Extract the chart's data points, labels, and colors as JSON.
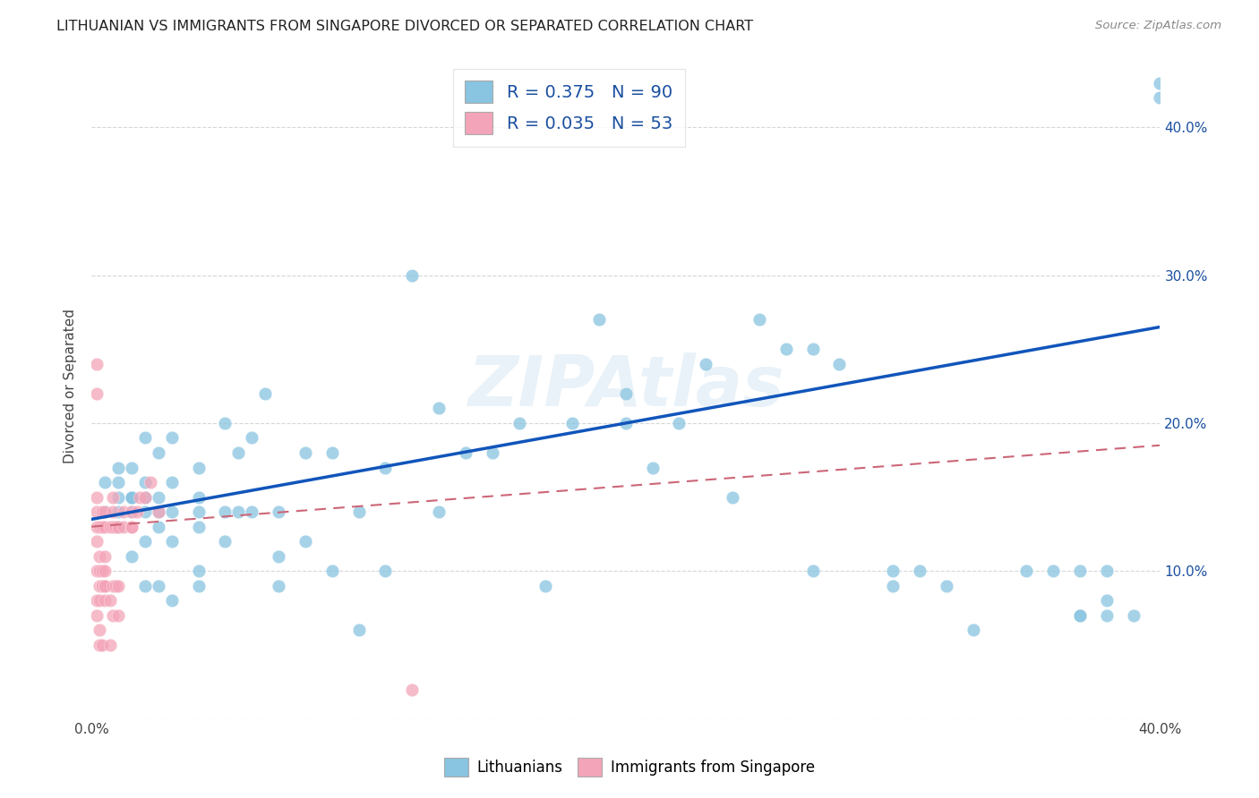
{
  "title": "LITHUANIAN VS IMMIGRANTS FROM SINGAPORE DIVORCED OR SEPARATED CORRELATION CHART",
  "source": "Source: ZipAtlas.com",
  "ylabel": "Divorced or Separated",
  "xlabel": "",
  "xlim": [
    0.0,
    0.4
  ],
  "ylim": [
    0.0,
    0.45
  ],
  "x_ticks": [
    0.0,
    0.1,
    0.2,
    0.3,
    0.4
  ],
  "x_tick_labels": [
    "0.0%",
    "",
    "",
    "",
    "40.0%"
  ],
  "y_ticks": [
    0.0,
    0.1,
    0.2,
    0.3,
    0.4
  ],
  "y_tick_labels_right": [
    "",
    "10.0%",
    "20.0%",
    "30.0%",
    "40.0%"
  ],
  "watermark": "ZIPAtlas",
  "blue_color": "#89c4e1",
  "pink_color": "#f4a4b8",
  "blue_line_color": "#1155bb",
  "pink_line_color": "#cc6677",
  "legend_blue_label_r": "R = ",
  "legend_blue_r_val": "0.375",
  "legend_blue_label_n": "  N = ",
  "legend_blue_n_val": "90",
  "legend_pink_label_r": "R = ",
  "legend_pink_r_val": "0.035",
  "legend_pink_label_n": "  N = ",
  "legend_pink_n_val": "53",
  "blue_trend_x": [
    0.0,
    0.4
  ],
  "blue_trend_y": [
    0.135,
    0.265
  ],
  "pink_trend_x": [
    0.0,
    0.4
  ],
  "pink_trend_y": [
    0.13,
    0.185
  ],
  "blue_scatter_x": [
    0.005,
    0.005,
    0.01,
    0.01,
    0.01,
    0.01,
    0.01,
    0.015,
    0.015,
    0.015,
    0.015,
    0.015,
    0.015,
    0.02,
    0.02,
    0.02,
    0.02,
    0.02,
    0.02,
    0.025,
    0.025,
    0.025,
    0.025,
    0.025,
    0.03,
    0.03,
    0.03,
    0.03,
    0.03,
    0.04,
    0.04,
    0.04,
    0.04,
    0.04,
    0.04,
    0.05,
    0.05,
    0.05,
    0.055,
    0.055,
    0.06,
    0.06,
    0.065,
    0.07,
    0.07,
    0.07,
    0.08,
    0.08,
    0.09,
    0.09,
    0.1,
    0.1,
    0.11,
    0.11,
    0.12,
    0.13,
    0.13,
    0.14,
    0.15,
    0.16,
    0.17,
    0.18,
    0.19,
    0.2,
    0.2,
    0.21,
    0.22,
    0.23,
    0.24,
    0.25,
    0.26,
    0.27,
    0.27,
    0.28,
    0.3,
    0.3,
    0.31,
    0.32,
    0.33,
    0.35,
    0.36,
    0.37,
    0.37,
    0.37,
    0.38,
    0.38,
    0.38,
    0.39,
    0.4,
    0.4
  ],
  "blue_scatter_y": [
    0.14,
    0.16,
    0.13,
    0.14,
    0.15,
    0.16,
    0.17,
    0.11,
    0.14,
    0.15,
    0.15,
    0.15,
    0.17,
    0.09,
    0.12,
    0.14,
    0.15,
    0.19,
    0.16,
    0.09,
    0.13,
    0.14,
    0.15,
    0.18,
    0.08,
    0.12,
    0.14,
    0.16,
    0.19,
    0.09,
    0.1,
    0.13,
    0.14,
    0.15,
    0.17,
    0.12,
    0.14,
    0.2,
    0.14,
    0.18,
    0.14,
    0.19,
    0.22,
    0.09,
    0.11,
    0.14,
    0.12,
    0.18,
    0.1,
    0.18,
    0.06,
    0.14,
    0.1,
    0.17,
    0.3,
    0.14,
    0.21,
    0.18,
    0.18,
    0.2,
    0.09,
    0.2,
    0.27,
    0.2,
    0.22,
    0.17,
    0.2,
    0.24,
    0.15,
    0.27,
    0.25,
    0.1,
    0.25,
    0.24,
    0.09,
    0.1,
    0.1,
    0.09,
    0.06,
    0.1,
    0.1,
    0.07,
    0.07,
    0.1,
    0.07,
    0.08,
    0.1,
    0.07,
    0.43,
    0.42
  ],
  "pink_scatter_x": [
    0.002,
    0.002,
    0.002,
    0.002,
    0.002,
    0.002,
    0.002,
    0.002,
    0.002,
    0.003,
    0.003,
    0.003,
    0.003,
    0.003,
    0.003,
    0.003,
    0.004,
    0.004,
    0.004,
    0.004,
    0.004,
    0.004,
    0.005,
    0.005,
    0.005,
    0.005,
    0.005,
    0.005,
    0.005,
    0.007,
    0.007,
    0.007,
    0.008,
    0.008,
    0.008,
    0.008,
    0.008,
    0.009,
    0.009,
    0.01,
    0.01,
    0.01,
    0.012,
    0.012,
    0.015,
    0.015,
    0.015,
    0.017,
    0.018,
    0.02,
    0.022,
    0.025,
    0.12
  ],
  "pink_scatter_y": [
    0.07,
    0.08,
    0.1,
    0.12,
    0.13,
    0.14,
    0.15,
    0.22,
    0.24,
    0.05,
    0.06,
    0.08,
    0.09,
    0.1,
    0.11,
    0.13,
    0.05,
    0.09,
    0.09,
    0.1,
    0.13,
    0.14,
    0.08,
    0.09,
    0.09,
    0.1,
    0.11,
    0.13,
    0.14,
    0.05,
    0.08,
    0.13,
    0.07,
    0.09,
    0.13,
    0.14,
    0.15,
    0.09,
    0.13,
    0.07,
    0.09,
    0.13,
    0.13,
    0.14,
    0.13,
    0.13,
    0.14,
    0.14,
    0.15,
    0.15,
    0.16,
    0.14,
    0.02
  ]
}
